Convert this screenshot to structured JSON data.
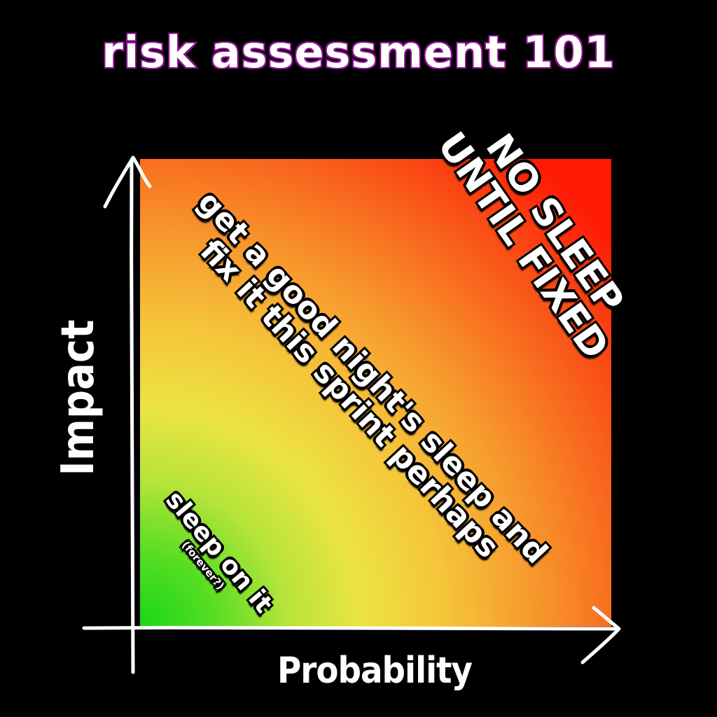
{
  "title": "risk assessment 101",
  "axes": {
    "y_label": "Impact",
    "x_label": "Probability"
  },
  "zones": {
    "high": {
      "line1": "NO SLEEP",
      "line2": "UNTIL FIXED"
    },
    "medium": {
      "line1": "get a good night's sleep and",
      "line2": "fix it this sprint perhaps"
    },
    "low": {
      "line1": "sleep on it",
      "note": "(forever?)"
    }
  },
  "colors": {
    "title_outline": "#8a0f8c",
    "low_risk": "#19d619",
    "medium_risk": "#ece443",
    "high_risk": "#ff1a06"
  }
}
